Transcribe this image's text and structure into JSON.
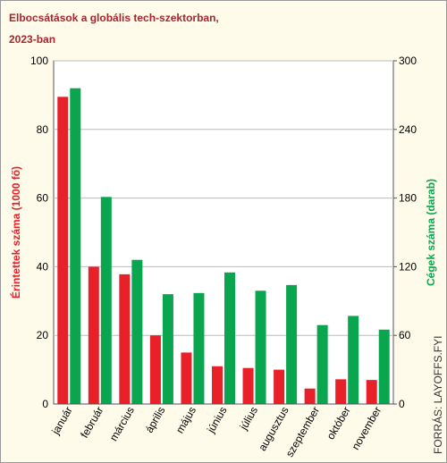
{
  "chart_data": {
    "type": "bar",
    "title": "Elbocsátások a globális tech-szektorban, 2023-ban",
    "source": "FORRÁS: LAYOFFS.FYI",
    "ylabel": "Érintettek száma (1000 fő)",
    "y2label": "Cégek száma (darab)",
    "categories": [
      "január",
      "február",
      "március",
      "április",
      "május",
      "június",
      "július",
      "augusztus",
      "szeptember",
      "október",
      "november"
    ],
    "series": [
      {
        "name": "Érintettek száma (1000 fő)",
        "color": "#e8202a",
        "values": [
          89.5,
          40,
          37.8,
          20,
          15,
          11,
          10.5,
          10,
          4.5,
          7.2,
          7
        ]
      },
      {
        "name": "Cégek száma (darab)",
        "color": "#0aa64f",
        "axis": "y2",
        "values": [
          276,
          181,
          126,
          96,
          97,
          115,
          99,
          104,
          69,
          77,
          65
        ]
      }
    ],
    "ylim": [
      0,
      100
    ],
    "yticks": [
      0,
      20,
      40,
      60,
      80,
      100
    ],
    "y2lim": [
      0,
      300
    ],
    "y2ticks": [
      0,
      60,
      120,
      180,
      240,
      300
    ],
    "grid": true
  }
}
